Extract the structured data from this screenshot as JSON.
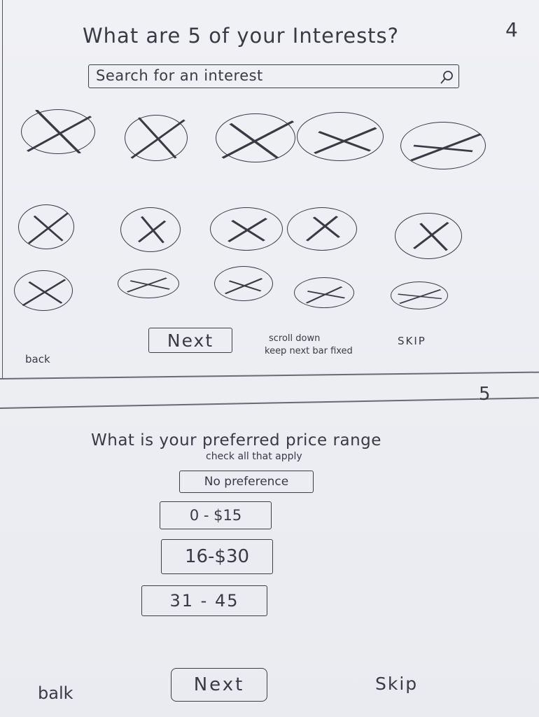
{
  "screen4": {
    "page_number": "4",
    "title": "What are 5 of your Interests?",
    "search_placeholder": "Search for an interest",
    "search_icon": "search-icon",
    "interest_rows": [
      {
        "count": 5,
        "state": "crossed-out"
      },
      {
        "count": 5,
        "state": "crossed-out"
      },
      {
        "count": 5,
        "state": "crossed-out"
      }
    ],
    "next_label": "Next",
    "note_line1": "scroll down",
    "note_line2": "keep next bar fixed",
    "skip_label": "SKIP",
    "back_label": "back"
  },
  "screen5": {
    "page_number": "5",
    "title": "What is your preferred price range",
    "subtitle": "check all that apply",
    "options": [
      "No preference",
      "0 - $15",
      "16-$30",
      "31 - 45"
    ],
    "next_label": "Next",
    "skip_label": "Skip",
    "back_label": "balk"
  }
}
